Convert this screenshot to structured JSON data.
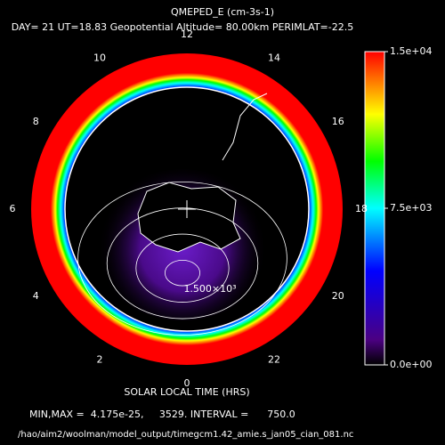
{
  "chart_data": {
    "type": "polar-contour",
    "title": "QMEPED_E (cm-3s-1)",
    "subtitle": "DAY= 21 UT=18.83 Geopotential Altitude= 80.00km PERIMLAT=-22.5",
    "angular_ticks": [
      12,
      14,
      16,
      18,
      20,
      22,
      0,
      2,
      4,
      6,
      8,
      10
    ],
    "xlabel": "SOLAR LOCAL TIME (HRS)",
    "clim": [
      0,
      15000
    ],
    "cticks": [
      {
        "value": 0,
        "label": "0.0e+00"
      },
      {
        "value": 7500,
        "label": "7.5e+03"
      },
      {
        "value": 15000,
        "label": "1.5e+04"
      }
    ],
    "contour_levels": [
      750,
      1500,
      2250,
      3000
    ],
    "annotations": [
      "1.500×10³"
    ],
    "stats_text": "MIN,MAX =  4.175e-25,     3529. INTERVAL =      750.0",
    "file_path": "/hao/aim2/woolman/model_output/timegcm1.42_amie.s_jan05_cian_081.nc"
  }
}
